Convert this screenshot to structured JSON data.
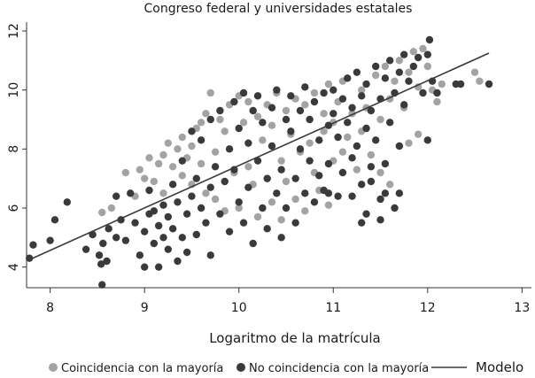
{
  "chart_data": {
    "type": "scatter",
    "title": "Congreso federal y universidades estatales",
    "xlabel": "Logaritmo de la matrícula",
    "ylabel": "",
    "xlim": [
      7.75,
      13.1
    ],
    "ylim": [
      3.3,
      12.3
    ],
    "x_ticks": [
      8,
      9,
      10,
      11,
      12,
      13
    ],
    "y_ticks": [
      4,
      6,
      8,
      10,
      12
    ],
    "grid": false,
    "legend_position": "bottom",
    "colors": {
      "coincidencia": "#a3a3a3",
      "no_coincidencia": "#3a3a3a",
      "modelo": "#3a3a3a"
    },
    "series": [
      {
        "name": "Coincidencia con la mayoría",
        "kind": "points",
        "color": "#a3a3a3",
        "points": [
          [
            8.55,
            5.85
          ],
          [
            8.65,
            6.0
          ],
          [
            8.8,
            7.2
          ],
          [
            8.9,
            6.4
          ],
          [
            8.95,
            7.3
          ],
          [
            9.0,
            7.0
          ],
          [
            9.05,
            7.7
          ],
          [
            9.1,
            6.9
          ],
          [
            9.15,
            7.5
          ],
          [
            9.2,
            7.8
          ],
          [
            9.2,
            6.5
          ],
          [
            9.25,
            8.2
          ],
          [
            9.3,
            7.4
          ],
          [
            9.35,
            8.0
          ],
          [
            9.4,
            7.1
          ],
          [
            9.4,
            8.4
          ],
          [
            9.45,
            7.7
          ],
          [
            9.5,
            8.1
          ],
          [
            9.5,
            6.8
          ],
          [
            9.55,
            8.7
          ],
          [
            9.6,
            7.5
          ],
          [
            9.6,
            8.9
          ],
          [
            9.65,
            6.5
          ],
          [
            9.65,
            9.2
          ],
          [
            9.7,
            9.9
          ],
          [
            9.75,
            7.9
          ],
          [
            9.75,
            6.3
          ],
          [
            9.8,
            9.0
          ],
          [
            9.85,
            8.6
          ],
          [
            9.85,
            5.9
          ],
          [
            9.9,
            9.5
          ],
          [
            9.95,
            7.2
          ],
          [
            10.0,
            9.8
          ],
          [
            10.0,
            6.0
          ],
          [
            10.05,
            8.9
          ],
          [
            10.1,
            9.6
          ],
          [
            10.1,
            7.4
          ],
          [
            10.15,
            6.8
          ],
          [
            10.2,
            9.1
          ],
          [
            10.2,
            5.7
          ],
          [
            10.25,
            8.3
          ],
          [
            10.3,
            9.5
          ],
          [
            10.3,
            7.0
          ],
          [
            10.35,
            6.2
          ],
          [
            10.35,
            8.8
          ],
          [
            10.4,
            9.9
          ],
          [
            10.45,
            7.6
          ],
          [
            10.45,
            5.6
          ],
          [
            10.5,
            9.3
          ],
          [
            10.5,
            6.9
          ],
          [
            10.55,
            8.5
          ],
          [
            10.6,
            9.7
          ],
          [
            10.6,
            6.3
          ],
          [
            10.65,
            7.9
          ],
          [
            10.7,
            9.5
          ],
          [
            10.7,
            5.9
          ],
          [
            10.75,
            8.2
          ],
          [
            10.8,
            9.9
          ],
          [
            10.8,
            7.2
          ],
          [
            10.85,
            6.6
          ],
          [
            10.9,
            9.2
          ],
          [
            10.9,
            8.6
          ],
          [
            10.95,
            10.2
          ],
          [
            10.95,
            6.1
          ],
          [
            11.0,
            8.9
          ],
          [
            11.0,
            7.6
          ],
          [
            11.05,
            9.6
          ],
          [
            11.1,
            7.9
          ],
          [
            11.1,
            10.3
          ],
          [
            11.15,
            8.4
          ],
          [
            11.2,
            9.2
          ],
          [
            11.25,
            7.3
          ],
          [
            11.3,
            10.0
          ],
          [
            11.3,
            8.6
          ],
          [
            11.35,
            9.4
          ],
          [
            11.4,
            7.8
          ],
          [
            11.45,
            10.5
          ],
          [
            11.5,
            9.0
          ],
          [
            11.5,
            7.2
          ],
          [
            11.55,
            10.8
          ],
          [
            11.6,
            9.7
          ],
          [
            11.6,
            6.8
          ],
          [
            11.65,
            10.3
          ],
          [
            11.7,
            11.0
          ],
          [
            11.75,
            9.4
          ],
          [
            11.8,
            10.6
          ],
          [
            11.85,
            11.3
          ],
          [
            11.9,
            10.1
          ],
          [
            11.95,
            11.4
          ],
          [
            12.0,
            10.8
          ],
          [
            12.05,
            10.0
          ],
          [
            12.1,
            9.6
          ],
          [
            12.15,
            10.2
          ],
          [
            11.8,
            8.2
          ],
          [
            11.9,
            8.5
          ],
          [
            12.5,
            10.6
          ],
          [
            12.55,
            10.3
          ]
        ]
      },
      {
        "name": "No coincidencia con la mayoría",
        "kind": "points",
        "color": "#3a3a3a",
        "points": [
          [
            7.78,
            4.3
          ],
          [
            7.82,
            4.75
          ],
          [
            8.0,
            4.9
          ],
          [
            8.05,
            5.6
          ],
          [
            8.18,
            6.2
          ],
          [
            8.38,
            4.6
          ],
          [
            8.45,
            5.1
          ],
          [
            8.52,
            4.4
          ],
          [
            8.54,
            4.1
          ],
          [
            8.55,
            3.4
          ],
          [
            8.56,
            4.8
          ],
          [
            8.6,
            4.2
          ],
          [
            8.62,
            5.3
          ],
          [
            8.7,
            5.0
          ],
          [
            8.7,
            6.4
          ],
          [
            8.75,
            5.6
          ],
          [
            8.8,
            4.9
          ],
          [
            8.85,
            6.5
          ],
          [
            8.9,
            5.5
          ],
          [
            8.95,
            4.4
          ],
          [
            9.0,
            5.2
          ],
          [
            9.0,
            4.0
          ],
          [
            9.05,
            5.8
          ],
          [
            9.05,
            6.6
          ],
          [
            9.1,
            4.8
          ],
          [
            9.1,
            5.9
          ],
          [
            9.15,
            4.0
          ],
          [
            9.15,
            5.4
          ],
          [
            9.2,
            6.1
          ],
          [
            9.2,
            5.0
          ],
          [
            9.25,
            4.6
          ],
          [
            9.25,
            5.7
          ],
          [
            9.3,
            6.8
          ],
          [
            9.3,
            5.3
          ],
          [
            9.35,
            4.2
          ],
          [
            9.35,
            6.2
          ],
          [
            9.4,
            5.0
          ],
          [
            9.4,
            7.6
          ],
          [
            9.45,
            5.8
          ],
          [
            9.45,
            4.5
          ],
          [
            9.5,
            6.4
          ],
          [
            9.5,
            8.6
          ],
          [
            9.55,
            5.1
          ],
          [
            9.55,
            7.0
          ],
          [
            9.6,
            6.0
          ],
          [
            9.6,
            8.3
          ],
          [
            9.65,
            5.5
          ],
          [
            9.7,
            4.4
          ],
          [
            9.7,
            6.7
          ],
          [
            9.7,
            9.0
          ],
          [
            9.75,
            7.4
          ],
          [
            9.8,
            5.8
          ],
          [
            9.8,
            9.3
          ],
          [
            9.85,
            6.9
          ],
          [
            9.9,
            8.0
          ],
          [
            9.9,
            5.2
          ],
          [
            9.95,
            9.6
          ],
          [
            9.95,
            7.3
          ],
          [
            10.0,
            6.2
          ],
          [
            10.0,
            8.7
          ],
          [
            10.05,
            9.9
          ],
          [
            10.05,
            5.5
          ],
          [
            10.1,
            8.2
          ],
          [
            10.1,
            6.7
          ],
          [
            10.15,
            9.3
          ],
          [
            10.15,
            4.8
          ],
          [
            10.2,
            7.6
          ],
          [
            10.2,
            9.8
          ],
          [
            10.25,
            6.0
          ],
          [
            10.25,
            8.9
          ],
          [
            10.3,
            7.0
          ],
          [
            10.3,
            5.3
          ],
          [
            10.35,
            9.4
          ],
          [
            10.35,
            8.1
          ],
          [
            10.4,
            6.5
          ],
          [
            10.4,
            10.0
          ],
          [
            10.45,
            7.3
          ],
          [
            10.45,
            5.0
          ],
          [
            10.5,
            9.0
          ],
          [
            10.5,
            6.0
          ],
          [
            10.55,
            8.6
          ],
          [
            10.55,
            9.8
          ],
          [
            10.6,
            7.0
          ],
          [
            10.6,
            5.5
          ],
          [
            10.65,
            9.3
          ],
          [
            10.65,
            8.0
          ],
          [
            10.7,
            6.5
          ],
          [
            10.7,
            10.1
          ],
          [
            10.75,
            7.6
          ],
          [
            10.75,
            9.0
          ],
          [
            10.8,
            6.2
          ],
          [
            10.8,
            9.6
          ],
          [
            10.85,
            8.3
          ],
          [
            10.85,
            7.1
          ],
          [
            10.9,
            9.9
          ],
          [
            10.9,
            6.6
          ],
          [
            10.95,
            8.8
          ],
          [
            10.95,
            7.5
          ],
          [
            11.0,
            10.0
          ],
          [
            11.0,
            9.2
          ],
          [
            11.05,
            6.4
          ],
          [
            11.05,
            8.4
          ],
          [
            11.1,
            9.7
          ],
          [
            11.1,
            7.2
          ],
          [
            11.15,
            10.4
          ],
          [
            11.15,
            8.9
          ],
          [
            11.2,
            7.7
          ],
          [
            11.2,
            9.4
          ],
          [
            11.25,
            10.6
          ],
          [
            11.25,
            8.1
          ],
          [
            11.3,
            9.8
          ],
          [
            11.3,
            6.8
          ],
          [
            11.35,
            10.2
          ],
          [
            11.35,
            8.7
          ],
          [
            11.4,
            9.3
          ],
          [
            11.4,
            7.4
          ],
          [
            11.45,
            10.8
          ],
          [
            11.45,
            8.3
          ],
          [
            11.5,
            9.7
          ],
          [
            11.5,
            6.3
          ],
          [
            11.55,
            10.4
          ],
          [
            11.55,
            7.5
          ],
          [
            11.6,
            11.0
          ],
          [
            11.6,
            8.9
          ],
          [
            11.65,
            9.9
          ],
          [
            11.65,
            6.0
          ],
          [
            11.7,
            10.6
          ],
          [
            11.7,
            8.1
          ],
          [
            11.75,
            11.2
          ],
          [
            11.75,
            9.5
          ],
          [
            11.8,
            10.3
          ],
          [
            11.85,
            10.8
          ],
          [
            11.9,
            11.1
          ],
          [
            11.95,
            9.9
          ],
          [
            12.0,
            11.2
          ],
          [
            12.02,
            11.7
          ],
          [
            12.05,
            10.3
          ],
          [
            12.1,
            9.9
          ],
          [
            12.3,
            10.2
          ],
          [
            12.35,
            10.2
          ],
          [
            12.65,
            10.2
          ],
          [
            11.2,
            6.4
          ],
          [
            11.35,
            5.8
          ],
          [
            11.4,
            6.9
          ],
          [
            11.5,
            5.6
          ],
          [
            11.55,
            6.5
          ],
          [
            10.95,
            6.5
          ],
          [
            12.0,
            8.3
          ],
          [
            11.7,
            6.5
          ],
          [
            11.3,
            5.5
          ]
        ]
      },
      {
        "name": "Modelo",
        "kind": "line",
        "color": "#3a3a3a",
        "points": [
          [
            7.78,
            4.25
          ],
          [
            12.65,
            11.25
          ]
        ]
      }
    ]
  }
}
